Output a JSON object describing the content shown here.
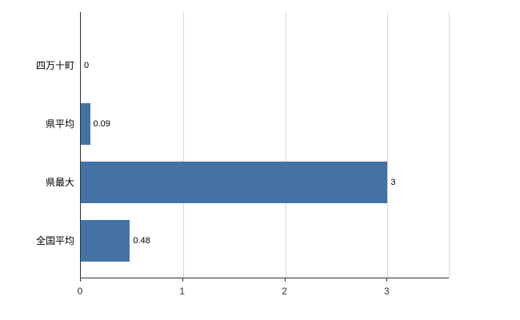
{
  "chart_data": {
    "type": "bar",
    "orientation": "horizontal",
    "categories": [
      "四万十町",
      "県平均",
      "県最大",
      "全国平均"
    ],
    "values": [
      0,
      0.09,
      3,
      0.48
    ],
    "value_labels": [
      "0",
      "0.09",
      "3",
      "0.48"
    ],
    "xlim": [
      0,
      3.6
    ],
    "xticks": [
      0,
      1,
      2,
      3
    ],
    "grid": true,
    "legend": "none",
    "bar_color": "#4472a4",
    "grid_color": "#d9d9d9",
    "axis_color": "#333333",
    "background_color": "#ffffff"
  }
}
